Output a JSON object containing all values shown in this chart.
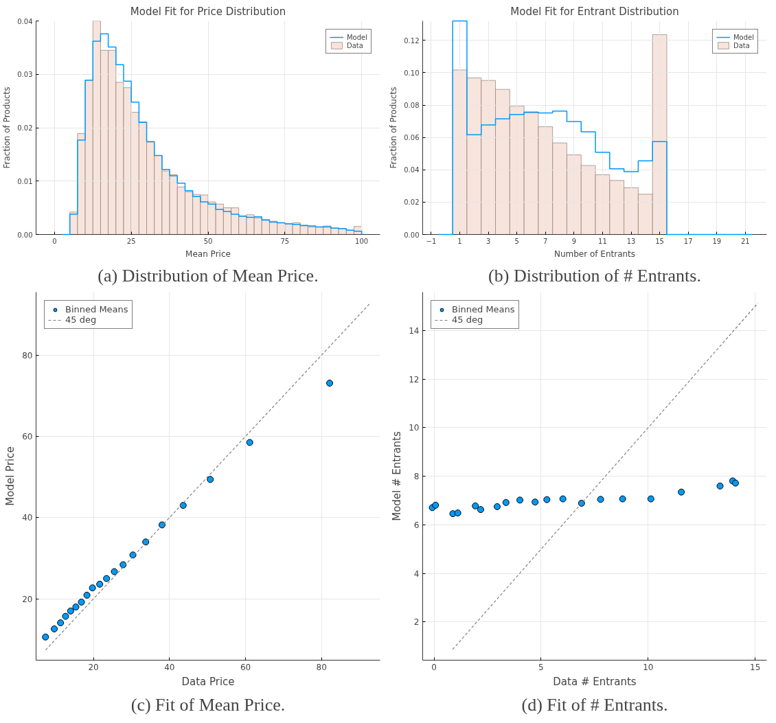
{
  "chart_data": [
    {
      "type": "histogram",
      "title": "Model Fit for Price Distribution",
      "xlabel": "Mean Price",
      "ylabel": "Fraction of Products",
      "annotations": [
        "(a) Distribution of Mean Price."
      ],
      "bins": [
        5,
        7.5,
        10,
        12.5,
        15,
        17.5,
        20,
        22.5,
        25,
        27.5,
        30,
        32.5,
        35,
        37.5,
        40,
        42.5,
        45,
        47.5,
        50,
        52.5,
        55,
        57.5,
        60,
        62.5,
        65,
        67.5,
        70,
        72.5,
        75,
        77.5,
        80,
        82.5,
        85,
        87.5,
        90,
        92.5,
        95,
        97.5,
        100
      ],
      "series": [
        {
          "name": "Model",
          "type": "step",
          "color": "#009af9",
          "x": [
            2.5,
            5,
            7.5,
            10,
            12.5,
            15,
            17.5,
            20,
            22.5,
            25,
            27.5,
            30,
            32.5,
            35,
            37.5,
            40,
            42.5,
            45,
            47.5,
            50,
            52.5,
            55,
            57.5,
            60,
            62.5,
            65,
            67.5,
            70,
            72.5,
            75,
            77.5,
            80,
            82.5,
            85,
            87.5,
            90,
            92.5,
            95,
            97.5,
            100
          ],
          "values": [
            0,
            0.0038,
            0.0177,
            0.0289,
            0.0362,
            0.0376,
            0.0351,
            0.0318,
            0.0287,
            0.0248,
            0.021,
            0.0174,
            0.0148,
            0.0122,
            0.011,
            0.0096,
            0.0082,
            0.0071,
            0.0061,
            0.0057,
            0.0047,
            0.0043,
            0.0038,
            0.0034,
            0.0032,
            0.0033,
            0.0027,
            0.0023,
            0.0022,
            0.002,
            0.0019,
            0.0017,
            0.0016,
            0.0014,
            0.0014,
            0.0012,
            0.0011,
            0.0008,
            0.0006,
            0
          ]
        },
        {
          "name": "Data",
          "color": "#f6dfd6",
          "values": [
            0.0042,
            0.0189,
            0.0289,
            0.04,
            0.0345,
            0.0345,
            0.0285,
            0.0275,
            0.0229,
            0.0211,
            0.0173,
            0.0148,
            0.0119,
            0.0112,
            0.0089,
            0.008,
            0.0075,
            0.0074,
            0.0061,
            0.0057,
            0.005,
            0.005,
            0.0035,
            0.0037,
            0.0031,
            0.0028,
            0.0025,
            0.0022,
            0.002,
            0.0022,
            0.0016,
            0.0014,
            0.0014,
            0.0016,
            0.0012,
            0.0011,
            0.0008,
            0.0015
          ]
        }
      ],
      "xlim": [
        -6,
        106
      ],
      "xticks": [
        0,
        25,
        50,
        75,
        100
      ],
      "ylim": [
        0,
        0.04
      ],
      "yticks": [
        {
          "value": 0,
          "label": "0.00"
        },
        {
          "value": 0.01,
          "label": "0.01"
        },
        {
          "value": 0.02,
          "label": "0.02"
        },
        {
          "value": 0.03,
          "label": "0.03"
        },
        {
          "value": 0.04,
          "label": "0.04"
        }
      ],
      "grid": true,
      "legend": "top right"
    },
    {
      "type": "histogram",
      "title": "Model Fit for Entrant Distribution",
      "xlabel": "Number of Entrants",
      "ylabel": "Fraction of Products",
      "annotations": [
        "(b) Distribution of # Entrants."
      ],
      "bins": [
        0.5,
        1.5,
        2.5,
        3.5,
        4.5,
        5.5,
        6.5,
        7.5,
        8.5,
        9.5,
        10.5,
        11.5,
        12.5,
        13.5,
        14.5,
        15.5
      ],
      "series": [
        {
          "name": "Model",
          "type": "step",
          "color": "#009af9",
          "x": [
            -0.5,
            0.5,
            1.5,
            2.5,
            3.5,
            4.5,
            5.5,
            6.5,
            7.5,
            8.5,
            9.5,
            10.5,
            11.5,
            12.5,
            13.5,
            14.5,
            15.5,
            16.5,
            17.5,
            18.5,
            19.5,
            20.5,
            21.5
          ],
          "values": [
            0,
            0.132,
            0.0617,
            0.0677,
            0.0715,
            0.0742,
            0.0757,
            0.0751,
            0.0763,
            0.0698,
            0.0635,
            0.0508,
            0.0406,
            0.0388,
            0.0455,
            0.0574,
            0,
            0,
            0,
            0,
            0,
            0,
            0
          ]
        },
        {
          "name": "Data",
          "color": "#f6dfd6",
          "values": [
            0.1017,
            0.0968,
            0.0952,
            0.0897,
            0.0795,
            0.0752,
            0.0666,
            0.0566,
            0.0492,
            0.0426,
            0.0369,
            0.0334,
            0.0289,
            0.0249,
            0.1235
          ]
        }
      ],
      "xlim": [
        -1.6,
        22.5
      ],
      "xticks": [
        {
          "value": -1,
          "label": "−1"
        },
        1,
        3,
        5,
        7,
        9,
        11,
        13,
        15,
        17,
        19,
        21
      ],
      "ylim": [
        0,
        0.132
      ],
      "yticks": [
        {
          "value": 0,
          "label": "0.00"
        },
        {
          "value": 0.02,
          "label": "0.02"
        },
        {
          "value": 0.04,
          "label": "0.04"
        },
        {
          "value": 0.06,
          "label": "0.06"
        },
        {
          "value": 0.08,
          "label": "0.08"
        },
        {
          "value": 0.1,
          "label": "0.10"
        },
        {
          "value": 0.12,
          "label": "0.12"
        }
      ],
      "grid": true,
      "legend": "top right"
    },
    {
      "type": "scatter",
      "xlabel": "Data Price",
      "ylabel": "Model Price",
      "annotations": [
        "(c) Fit of Mean Price."
      ],
      "series": [
        {
          "name": "Binned Means",
          "marker": "circle",
          "color": "#009af9",
          "x": [
            7.38,
            9.69,
            11.34,
            12.66,
            13.99,
            15.37,
            16.83,
            18.28,
            19.74,
            21.65,
            23.44,
            25.49,
            27.8,
            30.38,
            33.75,
            38.04,
            43.6,
            50.73,
            61.11,
            82.13
          ],
          "values": [
            10.6,
            12.6,
            14.1,
            15.7,
            17.0,
            18.0,
            19.2,
            20.9,
            22.7,
            23.6,
            25.0,
            26.7,
            28.4,
            30.8,
            34.0,
            38.2,
            43.0,
            49.4,
            58.5,
            73.1
          ]
        },
        {
          "name": "45 deg",
          "type": "line",
          "line_style": "dashed",
          "color": "#808080",
          "x": [
            7.4,
            92.9
          ],
          "values": [
            7.4,
            92.9
          ]
        }
      ],
      "xlim": [
        4.9,
        95.4
      ],
      "xticks": [
        20,
        40,
        60,
        80
      ],
      "ylim": [
        4.9,
        95.5
      ],
      "yticks": [
        20,
        40,
        60,
        80
      ],
      "grid": true,
      "legend": "top left"
    },
    {
      "type": "scatter",
      "xlabel": "Data # Entrants",
      "ylabel": "Model # Entrants",
      "annotations": [
        "(d) Fit of # Entrants."
      ],
      "series": [
        {
          "name": "Binned Means",
          "marker": "circle",
          "color": "#009af9",
          "x": [
            -0.08,
            0.07,
            0.88,
            1.11,
            1.93,
            2.18,
            2.95,
            3.36,
            4.01,
            4.72,
            5.27,
            6.02,
            6.89,
            7.78,
            8.81,
            10.13,
            11.55,
            13.36,
            13.95,
            14.08
          ],
          "values": [
            6.71,
            6.81,
            6.46,
            6.49,
            6.78,
            6.63,
            6.75,
            6.92,
            7.02,
            6.94,
            7.04,
            7.07,
            6.89,
            7.05,
            7.07,
            7.07,
            7.35,
            7.6,
            7.81,
            7.72
          ]
        },
        {
          "name": "45 deg",
          "type": "line",
          "line_style": "dashed",
          "color": "#808080",
          "x": [
            0.87,
            15.13
          ],
          "values": [
            0.87,
            15.13
          ]
        }
      ],
      "xlim": [
        -0.53,
        15.54
      ],
      "xticks": [
        0,
        5,
        10,
        15
      ],
      "ylim": [
        0.43,
        15.58
      ],
      "yticks": [
        2,
        4,
        6,
        8,
        10,
        12,
        14
      ],
      "grid": true,
      "legend": "top left"
    }
  ]
}
